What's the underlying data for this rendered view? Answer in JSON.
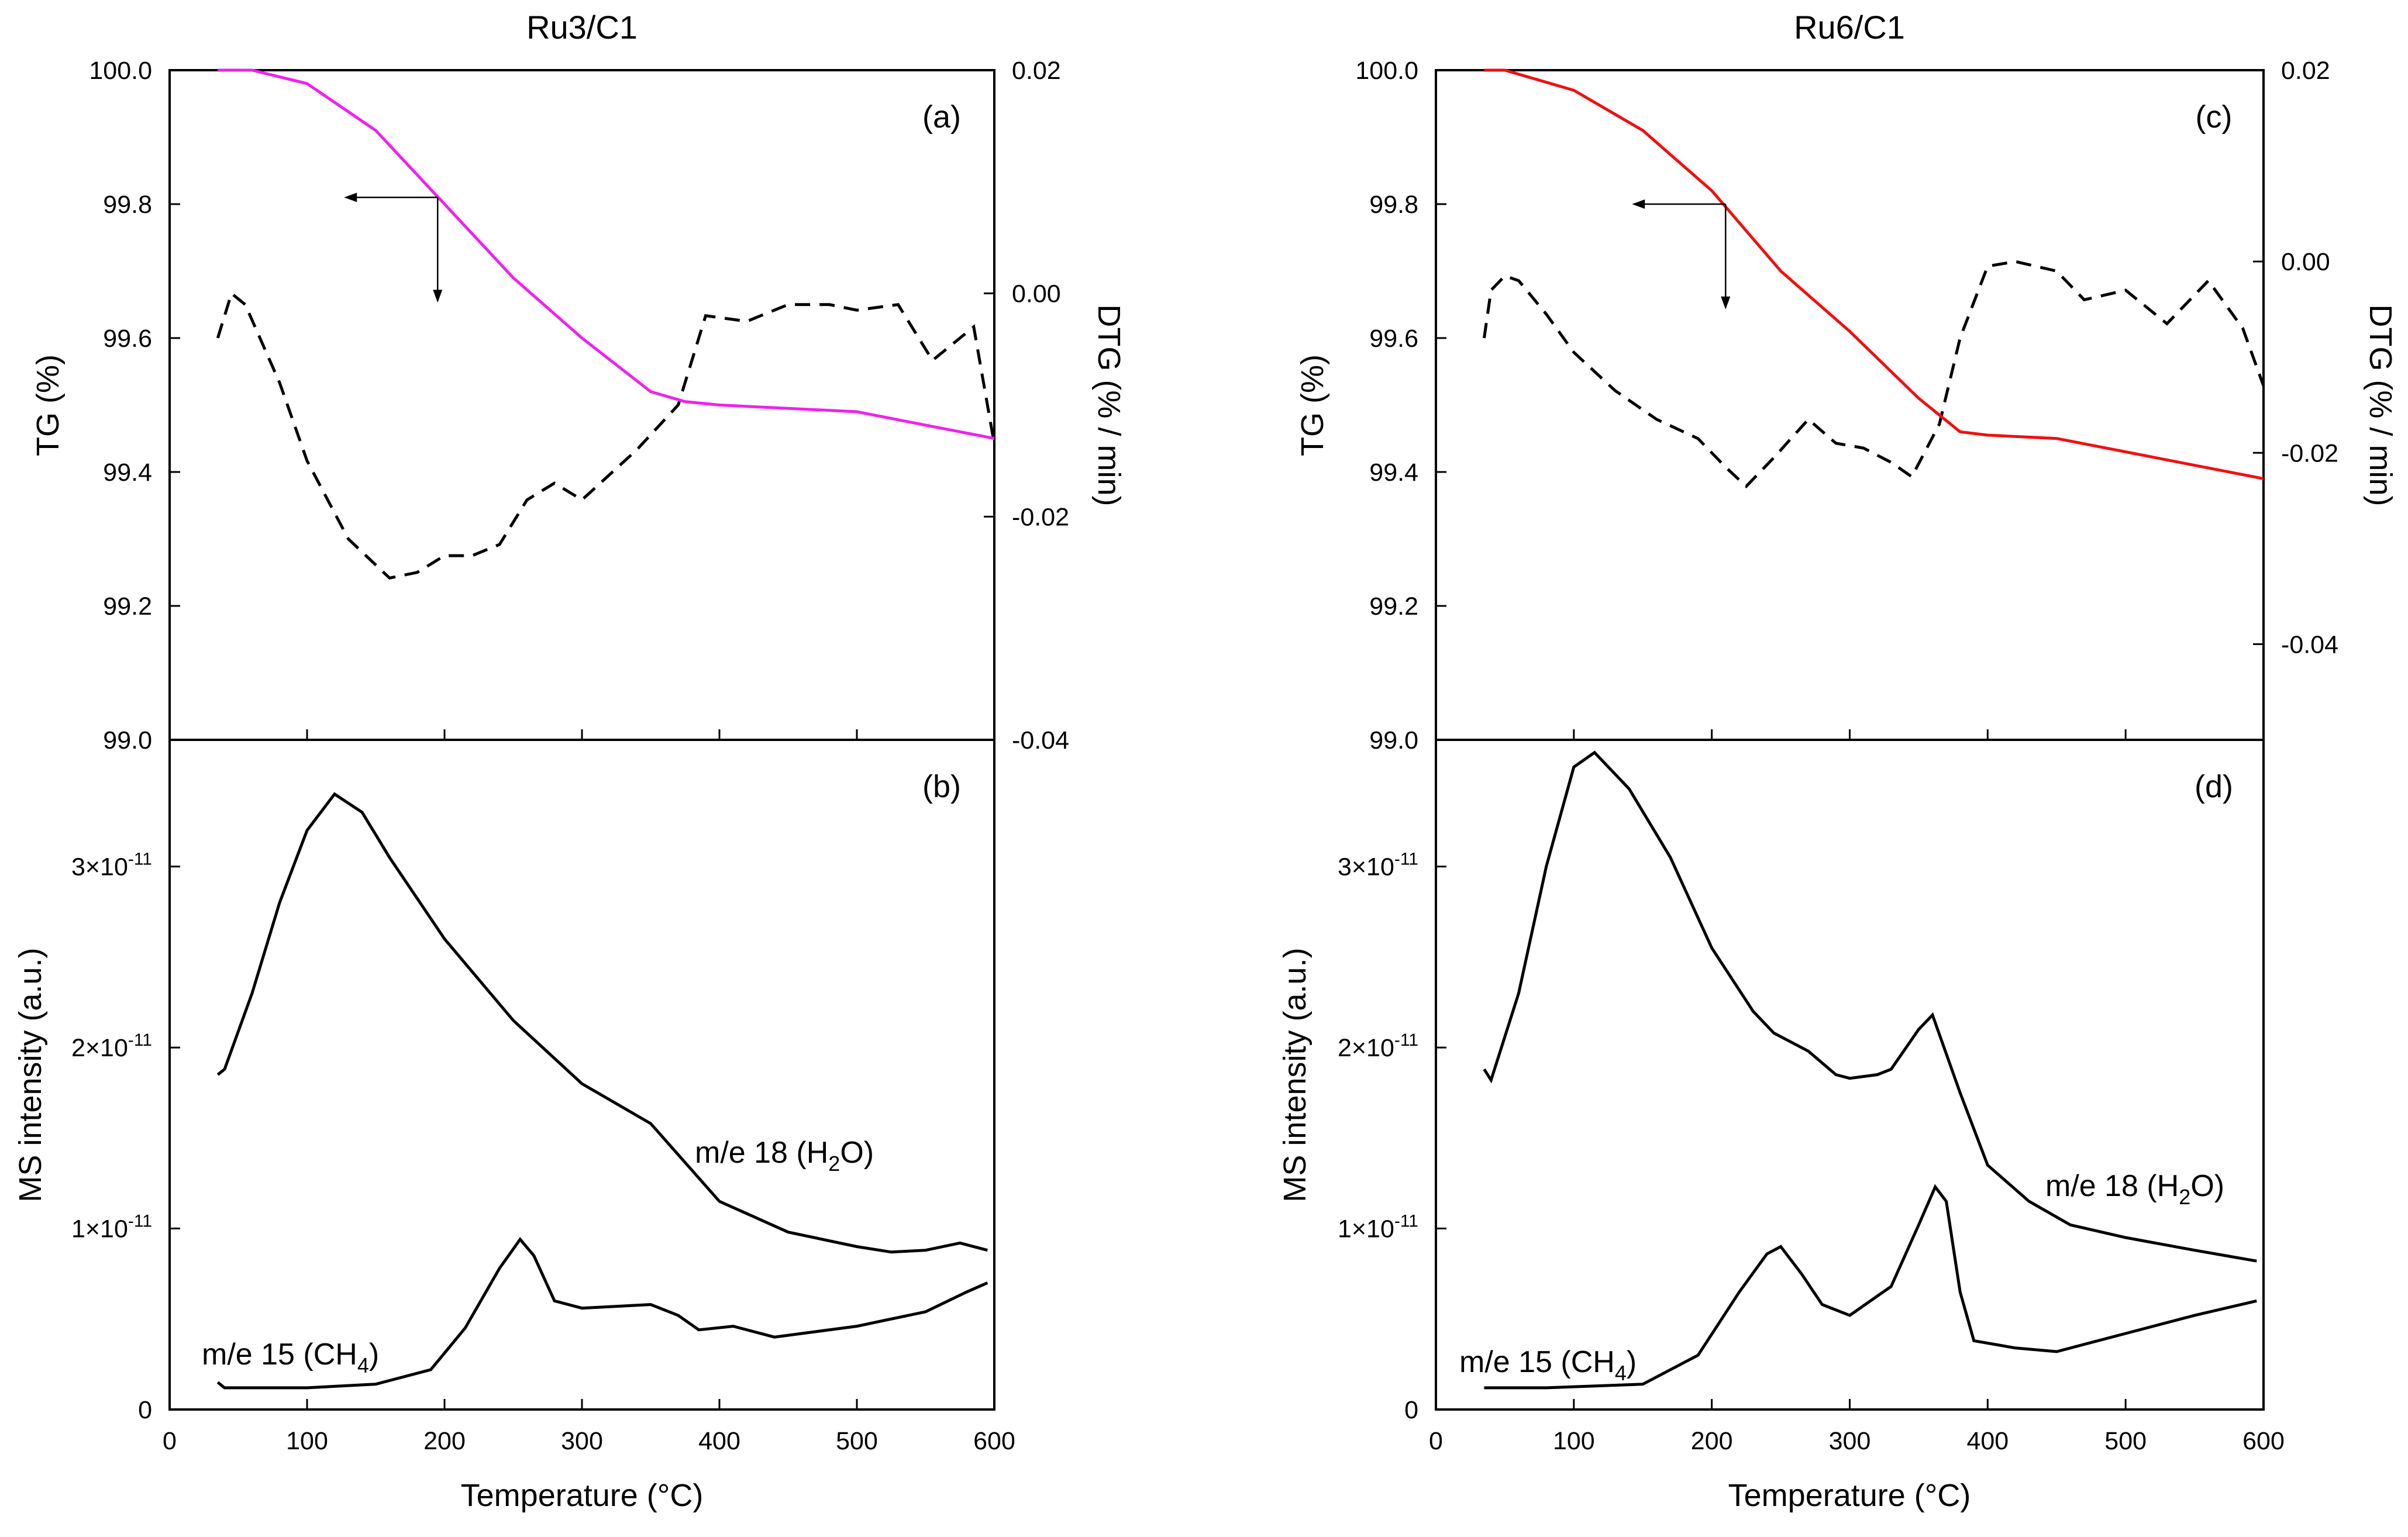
{
  "charts": [
    {
      "id": "ru3",
      "title": "Ru3/C1",
      "x_label": "Temperature (°C)",
      "x_range": [
        0,
        600
      ],
      "x_ticks": [
        0,
        100,
        200,
        300,
        400,
        500,
        600
      ],
      "top": {
        "letter": "(a)",
        "y_label": "TG (%)",
        "y_range": [
          99.0,
          100.0
        ],
        "y_ticks": [
          "99.0",
          "99.2",
          "99.4",
          "99.6",
          "99.8",
          "100.0"
        ],
        "y2_label": "DTG (% / min)",
        "y2_range": [
          -0.04,
          0.02
        ],
        "y2_ticks": [
          "-0.04",
          "-0.02",
          "0.00",
          "0.02"
        ],
        "tg_color": "#ee22ee",
        "tg": [
          [
            35,
            100.0
          ],
          [
            60,
            100.0
          ],
          [
            100,
            99.98
          ],
          [
            150,
            99.91
          ],
          [
            200,
            99.8
          ],
          [
            250,
            99.69
          ],
          [
            300,
            99.6
          ],
          [
            350,
            99.52
          ],
          [
            375,
            99.505
          ],
          [
            400,
            99.5
          ],
          [
            500,
            99.49
          ],
          [
            550,
            99.47
          ],
          [
            600,
            99.45
          ]
        ],
        "dtg": [
          [
            35,
            -0.004
          ],
          [
            45,
            0.0
          ],
          [
            55,
            -0.001
          ],
          [
            80,
            -0.008
          ],
          [
            100,
            -0.015
          ],
          [
            130,
            -0.022
          ],
          [
            160,
            -0.0255
          ],
          [
            180,
            -0.025
          ],
          [
            200,
            -0.0235
          ],
          [
            220,
            -0.0235
          ],
          [
            240,
            -0.0225
          ],
          [
            260,
            -0.0185
          ],
          [
            280,
            -0.017
          ],
          [
            300,
            -0.0185
          ],
          [
            340,
            -0.014
          ],
          [
            370,
            -0.01
          ],
          [
            390,
            -0.002
          ],
          [
            420,
            -0.0025
          ],
          [
            450,
            -0.001
          ],
          [
            480,
            -0.001
          ],
          [
            500,
            -0.0015
          ],
          [
            530,
            -0.001
          ],
          [
            555,
            -0.006
          ],
          [
            585,
            -0.003
          ],
          [
            600,
            -0.0135
          ]
        ],
        "arrow": {
          "x": 195,
          "y": 99.81
        }
      },
      "bottom": {
        "letter": "(b)",
        "y_label": "MS intensity (a.u.)",
        "y_range": [
          0,
          3.7
        ],
        "y_ticks": [
          {
            "v": 0,
            "base": "0",
            "exp": ""
          },
          {
            "v": 1,
            "base": "1×10",
            "exp": "-11"
          },
          {
            "v": 2,
            "base": "2×10",
            "exp": "-11"
          },
          {
            "v": 3,
            "base": "3×10",
            "exp": "-11"
          }
        ],
        "h2o_label": {
          "main": "m/e 18 (H",
          "sub": "2",
          "end": "O)"
        },
        "ch4_label": {
          "main": "m/e 15 (CH",
          "sub": "4",
          "end": ")"
        },
        "h2o": [
          [
            35,
            1.85
          ],
          [
            40,
            1.88
          ],
          [
            60,
            2.3
          ],
          [
            80,
            2.8
          ],
          [
            100,
            3.2
          ],
          [
            120,
            3.4
          ],
          [
            140,
            3.3
          ],
          [
            160,
            3.05
          ],
          [
            200,
            2.6
          ],
          [
            250,
            2.15
          ],
          [
            300,
            1.8
          ],
          [
            350,
            1.58
          ],
          [
            400,
            1.15
          ],
          [
            450,
            0.98
          ],
          [
            500,
            0.9
          ],
          [
            525,
            0.87
          ],
          [
            550,
            0.88
          ],
          [
            575,
            0.92
          ],
          [
            595,
            0.88
          ]
        ],
        "ch4": [
          [
            35,
            0.15
          ],
          [
            40,
            0.12
          ],
          [
            100,
            0.12
          ],
          [
            150,
            0.14
          ],
          [
            190,
            0.22
          ],
          [
            215,
            0.45
          ],
          [
            240,
            0.78
          ],
          [
            255,
            0.94
          ],
          [
            265,
            0.85
          ],
          [
            280,
            0.6
          ],
          [
            300,
            0.56
          ],
          [
            350,
            0.58
          ],
          [
            370,
            0.52
          ],
          [
            385,
            0.44
          ],
          [
            410,
            0.46
          ],
          [
            440,
            0.4
          ],
          [
            500,
            0.46
          ],
          [
            550,
            0.54
          ],
          [
            580,
            0.65
          ],
          [
            595,
            0.7
          ]
        ]
      }
    },
    {
      "id": "ru6",
      "title": "Ru6/C1",
      "x_label": "Temperature (°C)",
      "x_range": [
        0,
        600
      ],
      "x_ticks": [
        0,
        100,
        200,
        300,
        400,
        500,
        600
      ],
      "top": {
        "letter": "(c)",
        "y_label": "TG (%)",
        "y_range": [
          99.0,
          100.0
        ],
        "y_ticks": [
          "99.0",
          "99.2",
          "99.4",
          "99.6",
          "99.8",
          "100.0"
        ],
        "y2_label": "DTG (% / min)",
        "y2_range": [
          -0.05,
          0.02
        ],
        "y2_ticks": [
          "-0.04",
          "-0.02",
          "0.00",
          "0.02"
        ],
        "tg_color": "#ee1111",
        "tg": [
          [
            35,
            100.0
          ],
          [
            50,
            100.0
          ],
          [
            100,
            99.97
          ],
          [
            150,
            99.91
          ],
          [
            200,
            99.82
          ],
          [
            250,
            99.7
          ],
          [
            300,
            99.61
          ],
          [
            350,
            99.51
          ],
          [
            380,
            99.46
          ],
          [
            400,
            99.455
          ],
          [
            450,
            99.45
          ],
          [
            500,
            99.43
          ],
          [
            550,
            99.41
          ],
          [
            600,
            99.39
          ]
        ],
        "dtg": [
          [
            35,
            -0.008
          ],
          [
            40,
            -0.003
          ],
          [
            50,
            -0.0015
          ],
          [
            60,
            -0.002
          ],
          [
            80,
            -0.0055
          ],
          [
            100,
            -0.0095
          ],
          [
            130,
            -0.0135
          ],
          [
            160,
            -0.0165
          ],
          [
            190,
            -0.0185
          ],
          [
            210,
            -0.0215
          ],
          [
            225,
            -0.0235
          ],
          [
            245,
            -0.0205
          ],
          [
            270,
            -0.0165
          ],
          [
            290,
            -0.019
          ],
          [
            310,
            -0.0195
          ],
          [
            330,
            -0.021
          ],
          [
            345,
            -0.0225
          ],
          [
            365,
            -0.017
          ],
          [
            380,
            -0.008
          ],
          [
            400,
            -0.0005
          ],
          [
            420,
            0.0
          ],
          [
            450,
            -0.001
          ],
          [
            470,
            -0.004
          ],
          [
            500,
            -0.003
          ],
          [
            530,
            -0.0065
          ],
          [
            560,
            -0.002
          ],
          [
            585,
            -0.007
          ],
          [
            600,
            -0.013
          ]
        ],
        "arrow": {
          "x": 210,
          "y": 99.8
        }
      },
      "bottom": {
        "letter": "(d)",
        "y_label": "MS intensity (a.u.)",
        "y_range": [
          0,
          3.7
        ],
        "y_ticks": [
          {
            "v": 0,
            "base": "0",
            "exp": ""
          },
          {
            "v": 1,
            "base": "1×10",
            "exp": "-11"
          },
          {
            "v": 2,
            "base": "2×10",
            "exp": "-11"
          },
          {
            "v": 3,
            "base": "3×10",
            "exp": "-11"
          }
        ],
        "h2o_label": {
          "main": "m/e 18 (H",
          "sub": "2",
          "end": "O)"
        },
        "ch4_label": {
          "main": "m/e 15 (CH",
          "sub": "4",
          "end": ")"
        },
        "h2o": [
          [
            35,
            1.88
          ],
          [
            40,
            1.82
          ],
          [
            60,
            2.3
          ],
          [
            80,
            3.0
          ],
          [
            100,
            3.55
          ],
          [
            115,
            3.63
          ],
          [
            140,
            3.43
          ],
          [
            170,
            3.05
          ],
          [
            200,
            2.55
          ],
          [
            230,
            2.2
          ],
          [
            245,
            2.08
          ],
          [
            270,
            1.98
          ],
          [
            290,
            1.85
          ],
          [
            300,
            1.83
          ],
          [
            320,
            1.85
          ],
          [
            330,
            1.88
          ],
          [
            350,
            2.1
          ],
          [
            360,
            2.18
          ],
          [
            380,
            1.75
          ],
          [
            400,
            1.35
          ],
          [
            430,
            1.15
          ],
          [
            460,
            1.02
          ],
          [
            500,
            0.95
          ],
          [
            550,
            0.88
          ],
          [
            595,
            0.82
          ]
        ],
        "ch4": [
          [
            35,
            0.12
          ],
          [
            80,
            0.12
          ],
          [
            150,
            0.14
          ],
          [
            190,
            0.3
          ],
          [
            220,
            0.65
          ],
          [
            240,
            0.86
          ],
          [
            250,
            0.9
          ],
          [
            265,
            0.75
          ],
          [
            280,
            0.58
          ],
          [
            300,
            0.52
          ],
          [
            330,
            0.68
          ],
          [
            350,
            1.02
          ],
          [
            362,
            1.23
          ],
          [
            370,
            1.15
          ],
          [
            380,
            0.65
          ],
          [
            390,
            0.38
          ],
          [
            420,
            0.34
          ],
          [
            450,
            0.32
          ],
          [
            500,
            0.42
          ],
          [
            550,
            0.52
          ],
          [
            595,
            0.6
          ]
        ]
      }
    }
  ]
}
